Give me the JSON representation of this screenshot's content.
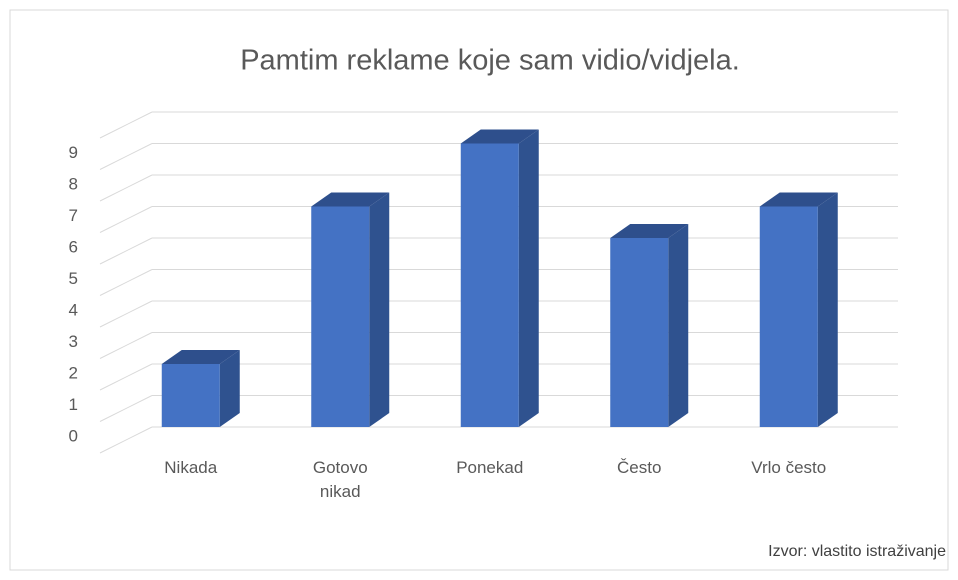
{
  "chart_data": {
    "type": "bar3d",
    "title": "Pamtim reklame koje sam vidio/vidjela.",
    "categories": [
      "Nikada",
      "Gotovo nikad",
      "Ponekad",
      "Često",
      "Vrlo često"
    ],
    "values": [
      2,
      7,
      9,
      6,
      7
    ],
    "color": "#4472c4",
    "ylim": [
      0,
      10
    ],
    "yticks": [
      0,
      1,
      2,
      3,
      4,
      5,
      6,
      7,
      8,
      9
    ],
    "grid": true,
    "source": "Izvor: vlastito istraživanje"
  }
}
